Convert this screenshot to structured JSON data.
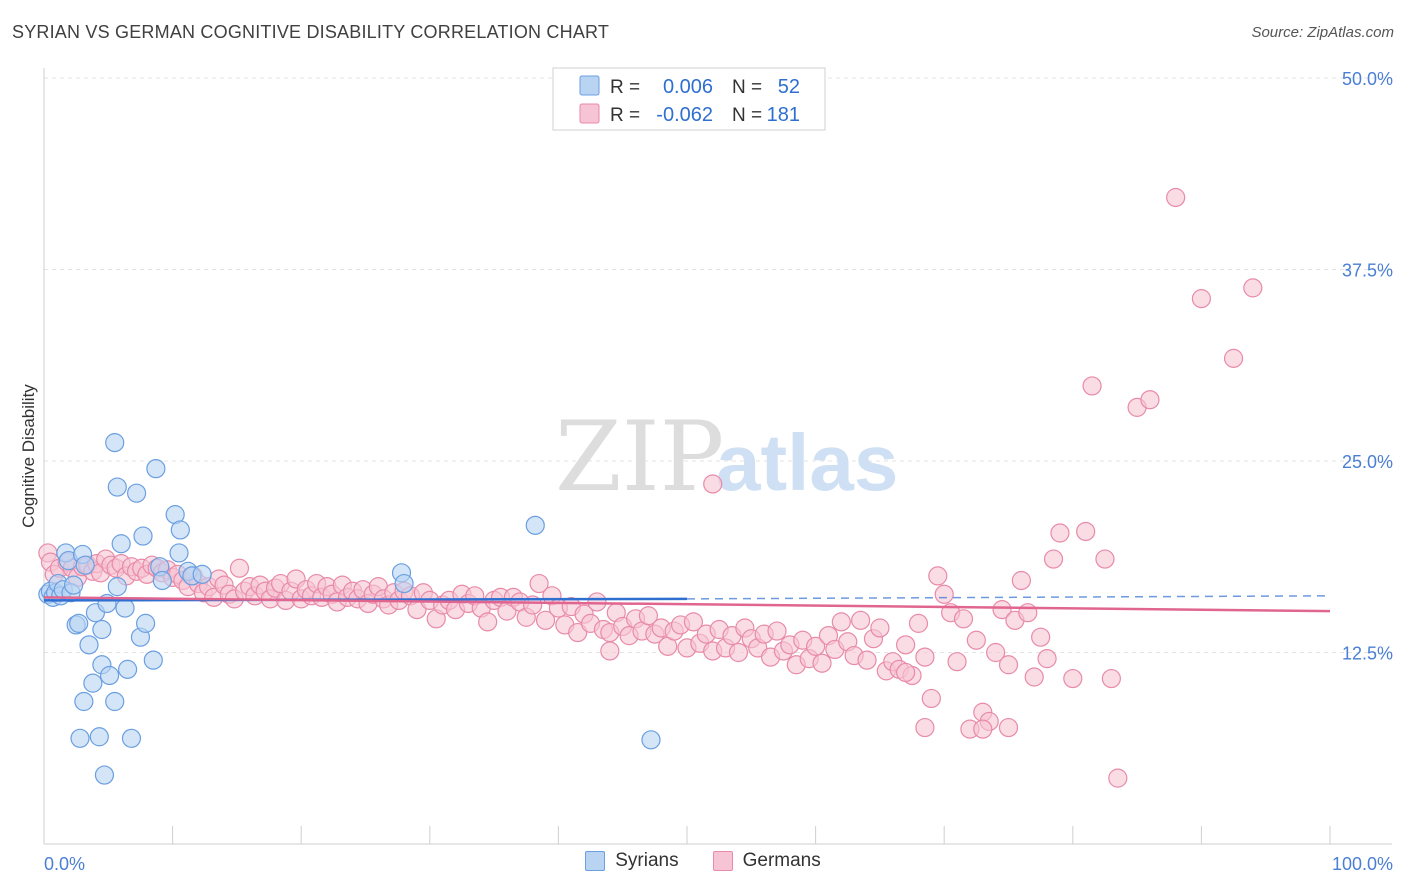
{
  "title": "SYRIAN VS GERMAN COGNITIVE DISABILITY CORRELATION CHART",
  "source": "Source: ZipAtlas.com",
  "watermark": {
    "zip": "ZIP",
    "atlas": "atlas"
  },
  "chart_data": {
    "type": "scatter",
    "title": "SYRIAN VS GERMAN COGNITIVE DISABILITY CORRELATION CHART",
    "xlabel": "",
    "ylabel": "Cognitive Disability",
    "xlim": [
      0,
      100
    ],
    "ylim": [
      0,
      50
    ],
    "x_tick_labels": [
      "0.0%",
      "100.0%"
    ],
    "y_ticks": [
      12.5,
      25.0,
      37.5,
      50.0
    ],
    "y_tick_labels": [
      "12.5%",
      "25.0%",
      "37.5%",
      "50.0%"
    ],
    "grid": true,
    "legend_placement": "top-center",
    "stats": [
      {
        "r_label": "R =",
        "r_value": "0.006",
        "n_label": "N =",
        "n_value": "52"
      },
      {
        "r_label": "R =",
        "r_value": "-0.062",
        "n_label": "N =",
        "n_value": "181"
      }
    ],
    "series": [
      {
        "name": "Syrians",
        "color": "#6a9fe0",
        "fill": "#b9d3f3",
        "line_color": "#2f6fd0",
        "trend": {
          "x0": 0,
          "y0": 15.9,
          "x1": 50,
          "y1": 16.0,
          "dashed_to": 100,
          "dashed_y": 16.2
        },
        "points": [
          [
            0.3,
            16.3
          ],
          [
            0.5,
            16.5
          ],
          [
            0.7,
            16.1
          ],
          [
            0.9,
            16.4
          ],
          [
            1.1,
            17.0
          ],
          [
            1.3,
            16.2
          ],
          [
            1.5,
            16.6
          ],
          [
            1.7,
            19.0
          ],
          [
            1.9,
            18.5
          ],
          [
            2.1,
            16.4
          ],
          [
            2.3,
            16.9
          ],
          [
            2.5,
            14.3
          ],
          [
            2.7,
            14.4
          ],
          [
            3.0,
            18.9
          ],
          [
            3.2,
            18.2
          ],
          [
            3.5,
            13.0
          ],
          [
            3.8,
            10.5
          ],
          [
            4.0,
            15.1
          ],
          [
            4.3,
            7.0
          ],
          [
            3.1,
            9.3
          ],
          [
            4.5,
            14.0
          ],
          [
            4.5,
            11.7
          ],
          [
            4.7,
            4.5
          ],
          [
            4.9,
            15.7
          ],
          [
            5.1,
            11.0
          ],
          [
            5.5,
            9.3
          ],
          [
            5.7,
            23.3
          ],
          [
            6.0,
            19.6
          ],
          [
            6.3,
            15.4
          ],
          [
            6.5,
            11.4
          ],
          [
            6.8,
            6.9
          ],
          [
            7.2,
            22.9
          ],
          [
            7.5,
            13.5
          ],
          [
            7.7,
            20.1
          ],
          [
            7.9,
            14.4
          ],
          [
            8.5,
            12.0
          ],
          [
            8.7,
            24.5
          ],
          [
            9.0,
            18.1
          ],
          [
            9.2,
            17.2
          ],
          [
            10.2,
            21.5
          ],
          [
            10.5,
            19.0
          ],
          [
            10.6,
            20.5
          ],
          [
            11.2,
            17.8
          ],
          [
            11.5,
            17.5
          ],
          [
            12.3,
            17.6
          ],
          [
            2.8,
            6.9
          ],
          [
            5.5,
            26.2
          ],
          [
            27.8,
            17.7
          ],
          [
            28.0,
            17.0
          ],
          [
            38.2,
            20.8
          ],
          [
            47.2,
            6.8
          ],
          [
            5.7,
            16.8
          ]
        ]
      },
      {
        "name": "Germans",
        "color": "#e88aa9",
        "fill": "#f6c4d4",
        "line_color": "#e06690",
        "trend": {
          "x0": 0,
          "y0": 16.1,
          "x1": 100,
          "y1": 15.2
        },
        "points": [
          [
            0.3,
            19.0
          ],
          [
            0.5,
            18.4
          ],
          [
            0.8,
            17.6
          ],
          [
            1.2,
            18.0
          ],
          [
            1.8,
            18.4
          ],
          [
            2.2,
            18.0
          ],
          [
            2.6,
            17.4
          ],
          [
            3.0,
            18.1
          ],
          [
            3.4,
            18.2
          ],
          [
            3.8,
            17.8
          ],
          [
            4.1,
            18.3
          ],
          [
            4.4,
            17.7
          ],
          [
            4.8,
            18.6
          ],
          [
            5.2,
            18.2
          ],
          [
            5.6,
            18.0
          ],
          [
            6.0,
            18.3
          ],
          [
            6.4,
            17.5
          ],
          [
            6.8,
            18.1
          ],
          [
            7.2,
            17.8
          ],
          [
            7.6,
            18.0
          ],
          [
            8.0,
            17.6
          ],
          [
            8.4,
            18.2
          ],
          [
            8.8,
            18.0
          ],
          [
            9.2,
            17.7
          ],
          [
            9.6,
            17.9
          ],
          [
            10.0,
            17.4
          ],
          [
            10.4,
            17.6
          ],
          [
            10.8,
            17.2
          ],
          [
            11.2,
            16.8
          ],
          [
            11.6,
            17.5
          ],
          [
            12.0,
            17.0
          ],
          [
            12.4,
            16.4
          ],
          [
            12.8,
            16.8
          ],
          [
            13.2,
            16.1
          ],
          [
            13.6,
            17.3
          ],
          [
            14.0,
            16.9
          ],
          [
            14.4,
            16.3
          ],
          [
            14.8,
            16.0
          ],
          [
            15.2,
            18.0
          ],
          [
            15.6,
            16.5
          ],
          [
            16.0,
            16.8
          ],
          [
            16.4,
            16.2
          ],
          [
            16.8,
            16.9
          ],
          [
            17.2,
            16.5
          ],
          [
            17.6,
            16.0
          ],
          [
            18.0,
            16.7
          ],
          [
            18.4,
            17.0
          ],
          [
            18.8,
            15.9
          ],
          [
            19.2,
            16.5
          ],
          [
            19.6,
            17.3
          ],
          [
            20.0,
            16.0
          ],
          [
            20.4,
            16.6
          ],
          [
            20.8,
            16.2
          ],
          [
            21.2,
            17.0
          ],
          [
            21.6,
            16.1
          ],
          [
            22.0,
            16.8
          ],
          [
            22.4,
            16.3
          ],
          [
            22.8,
            15.8
          ],
          [
            23.2,
            16.9
          ],
          [
            23.6,
            16.1
          ],
          [
            24.0,
            16.5
          ],
          [
            24.4,
            16.0
          ],
          [
            24.8,
            16.6
          ],
          [
            25.2,
            15.7
          ],
          [
            25.6,
            16.3
          ],
          [
            26.0,
            16.8
          ],
          [
            26.4,
            16.0
          ],
          [
            26.8,
            15.6
          ],
          [
            27.2,
            16.4
          ],
          [
            27.6,
            15.9
          ],
          [
            28.0,
            16.5
          ],
          [
            28.5,
            16.2
          ],
          [
            29.0,
            15.3
          ],
          [
            29.5,
            16.4
          ],
          [
            30.0,
            15.9
          ],
          [
            30.5,
            14.7
          ],
          [
            31.0,
            15.6
          ],
          [
            31.5,
            15.9
          ],
          [
            32.0,
            15.3
          ],
          [
            32.5,
            16.3
          ],
          [
            33.0,
            15.7
          ],
          [
            33.5,
            16.2
          ],
          [
            34.0,
            15.4
          ],
          [
            34.5,
            14.5
          ],
          [
            35.0,
            15.9
          ],
          [
            35.5,
            16.1
          ],
          [
            36.0,
            15.2
          ],
          [
            36.5,
            16.1
          ],
          [
            37.0,
            15.8
          ],
          [
            37.5,
            14.8
          ],
          [
            38.0,
            15.6
          ],
          [
            38.5,
            17.0
          ],
          [
            39.0,
            14.6
          ],
          [
            39.5,
            16.2
          ],
          [
            40.0,
            15.4
          ],
          [
            40.5,
            14.3
          ],
          [
            41.0,
            15.5
          ],
          [
            41.5,
            13.8
          ],
          [
            42.0,
            15.0
          ],
          [
            42.5,
            14.4
          ],
          [
            43.0,
            15.8
          ],
          [
            43.5,
            14.0
          ],
          [
            44.0,
            13.8
          ],
          [
            44.5,
            15.1
          ],
          [
            45.0,
            14.2
          ],
          [
            45.5,
            13.6
          ],
          [
            46.0,
            14.7
          ],
          [
            46.5,
            13.9
          ],
          [
            47.0,
            14.9
          ],
          [
            47.5,
            13.7
          ],
          [
            48.0,
            14.1
          ],
          [
            48.5,
            12.9
          ],
          [
            49.0,
            13.9
          ],
          [
            49.5,
            14.3
          ],
          [
            50.0,
            12.8
          ],
          [
            50.5,
            14.5
          ],
          [
            51.0,
            13.1
          ],
          [
            51.5,
            13.7
          ],
          [
            52.0,
            12.6
          ],
          [
            52.5,
            14.0
          ],
          [
            53.0,
            12.8
          ],
          [
            53.5,
            13.6
          ],
          [
            54.0,
            12.5
          ],
          [
            54.5,
            14.1
          ],
          [
            55.0,
            13.4
          ],
          [
            55.5,
            12.8
          ],
          [
            56.0,
            13.7
          ],
          [
            56.5,
            12.2
          ],
          [
            57.0,
            13.9
          ],
          [
            57.5,
            12.6
          ],
          [
            58.0,
            13.0
          ],
          [
            58.5,
            11.7
          ],
          [
            59.0,
            13.3
          ],
          [
            59.5,
            12.1
          ],
          [
            60.0,
            12.9
          ],
          [
            60.5,
            11.8
          ],
          [
            61.0,
            13.6
          ],
          [
            61.5,
            12.7
          ],
          [
            62.0,
            14.5
          ],
          [
            62.5,
            13.2
          ],
          [
            63.0,
            12.3
          ],
          [
            63.5,
            14.6
          ],
          [
            64.0,
            12.0
          ],
          [
            64.5,
            13.4
          ],
          [
            65.0,
            14.1
          ],
          [
            65.5,
            11.3
          ],
          [
            66.0,
            11.9
          ],
          [
            66.5,
            11.4
          ],
          [
            67.0,
            13.0
          ],
          [
            67.5,
            11.0
          ],
          [
            68.0,
            14.4
          ],
          [
            68.5,
            12.2
          ],
          [
            69.0,
            9.5
          ],
          [
            69.5,
            17.5
          ],
          [
            70.0,
            16.3
          ],
          [
            70.5,
            15.1
          ],
          [
            71.0,
            11.9
          ],
          [
            71.5,
            14.7
          ],
          [
            72.0,
            7.5
          ],
          [
            72.5,
            13.3
          ],
          [
            73.0,
            8.6
          ],
          [
            73.5,
            8.0
          ],
          [
            74.0,
            12.5
          ],
          [
            74.5,
            15.3
          ],
          [
            75.0,
            11.7
          ],
          [
            75.5,
            14.6
          ],
          [
            76.0,
            17.2
          ],
          [
            76.5,
            15.1
          ],
          [
            77.0,
            10.9
          ],
          [
            77.5,
            13.5
          ],
          [
            78.0,
            12.1
          ],
          [
            78.5,
            18.6
          ],
          [
            79.0,
            20.3
          ],
          [
            80.0,
            10.8
          ],
          [
            81.0,
            20.4
          ],
          [
            81.5,
            29.9
          ],
          [
            82.5,
            18.6
          ],
          [
            83.0,
            10.8
          ],
          [
            83.5,
            4.3
          ],
          [
            85.0,
            28.5
          ],
          [
            86.0,
            29.0
          ],
          [
            88.0,
            42.2
          ],
          [
            90.0,
            35.6
          ],
          [
            92.5,
            31.7
          ],
          [
            94.0,
            36.3
          ],
          [
            52.0,
            23.5
          ],
          [
            73.0,
            7.5
          ],
          [
            75.0,
            7.6
          ],
          [
            44.0,
            12.6
          ],
          [
            68.5,
            7.6
          ],
          [
            67.0,
            11.2
          ]
        ]
      }
    ]
  }
}
